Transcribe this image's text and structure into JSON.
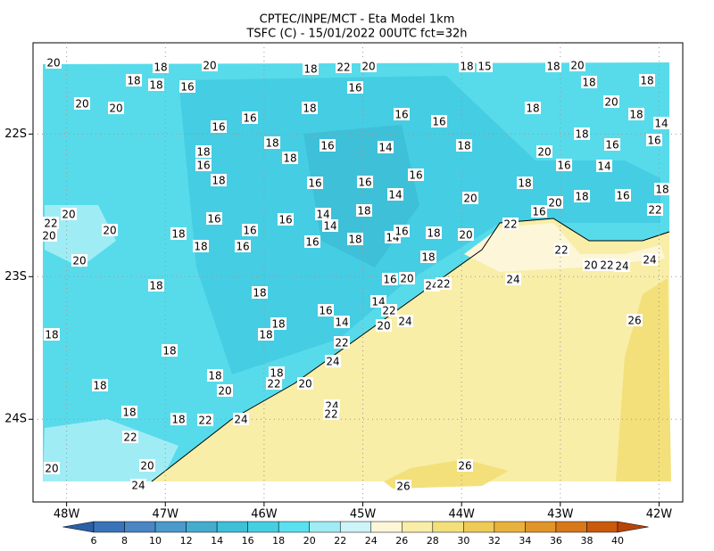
{
  "map": {
    "title": "CPTEC/INPE/MCT -  Eta Model 1km",
    "subtitle": "TSFC (C) - 15/01/2022 00UTC fct=32h",
    "xlim": [
      -48.34,
      -41.76
    ],
    "ylim": [
      -24.58,
      -21.36
    ],
    "xticks": [
      {
        "value": -48,
        "label": "48W"
      },
      {
        "value": -47,
        "label": "47W"
      },
      {
        "value": -46,
        "label": "46W"
      },
      {
        "value": -45,
        "label": "45W"
      },
      {
        "value": -44,
        "label": "44W"
      },
      {
        "value": -43,
        "label": "43W"
      },
      {
        "value": -42,
        "label": "42W"
      }
    ],
    "yticks": [
      {
        "value": -22,
        "label": "22S"
      },
      {
        "value": -23,
        "label": "23S"
      },
      {
        "value": -24,
        "label": "24S"
      }
    ],
    "grid": true,
    "colorbar": {
      "levels": [
        6,
        8,
        10,
        12,
        14,
        16,
        18,
        20,
        22,
        24,
        26,
        28,
        30,
        32,
        34,
        36,
        38,
        40
      ],
      "colors": [
        "#2b5fa8",
        "#3a74b8",
        "#4a86c4",
        "#4b9acb",
        "#44adcf",
        "#3ec0d8",
        "#45d0e2",
        "#5ae0ee",
        "#a0ecf5",
        "#cdf4f8",
        "#fdf6d8",
        "#f8eea8",
        "#f3e07a",
        "#eecb55",
        "#e8b23c",
        "#e19528",
        "#d7781a",
        "#c95a0c",
        "#b8440a"
      ]
    },
    "contour_labels": [
      20,
      18,
      20,
      18,
      22,
      20,
      18,
      15,
      18,
      20,
      18,
      18,
      16,
      16,
      18,
      18,
      20,
      20,
      18,
      16,
      16,
      18,
      20,
      18,
      14,
      16,
      16,
      18,
      16,
      14,
      18,
      20,
      18,
      16,
      16,
      18,
      16,
      18,
      16,
      14,
      18,
      16,
      16,
      16,
      14,
      20,
      18,
      20,
      18,
      16,
      18,
      16,
      16,
      14,
      18,
      22,
      16,
      22,
      22,
      20,
      20,
      20,
      18,
      18,
      16,
      16,
      16,
      14,
      18,
      14,
      16,
      18,
      20,
      20,
      18,
      22,
      20,
      22,
      24,
      24,
      18,
      18,
      16,
      20,
      24,
      22,
      24,
      16,
      14,
      22,
      14,
      24,
      20,
      18,
      18,
      22,
      26,
      18,
      18,
      24,
      18,
      18,
      20,
      22,
      20,
      18,
      24,
      22,
      18,
      18,
      22,
      24,
      22,
      20,
      20,
      26,
      24,
      26
    ]
  }
}
